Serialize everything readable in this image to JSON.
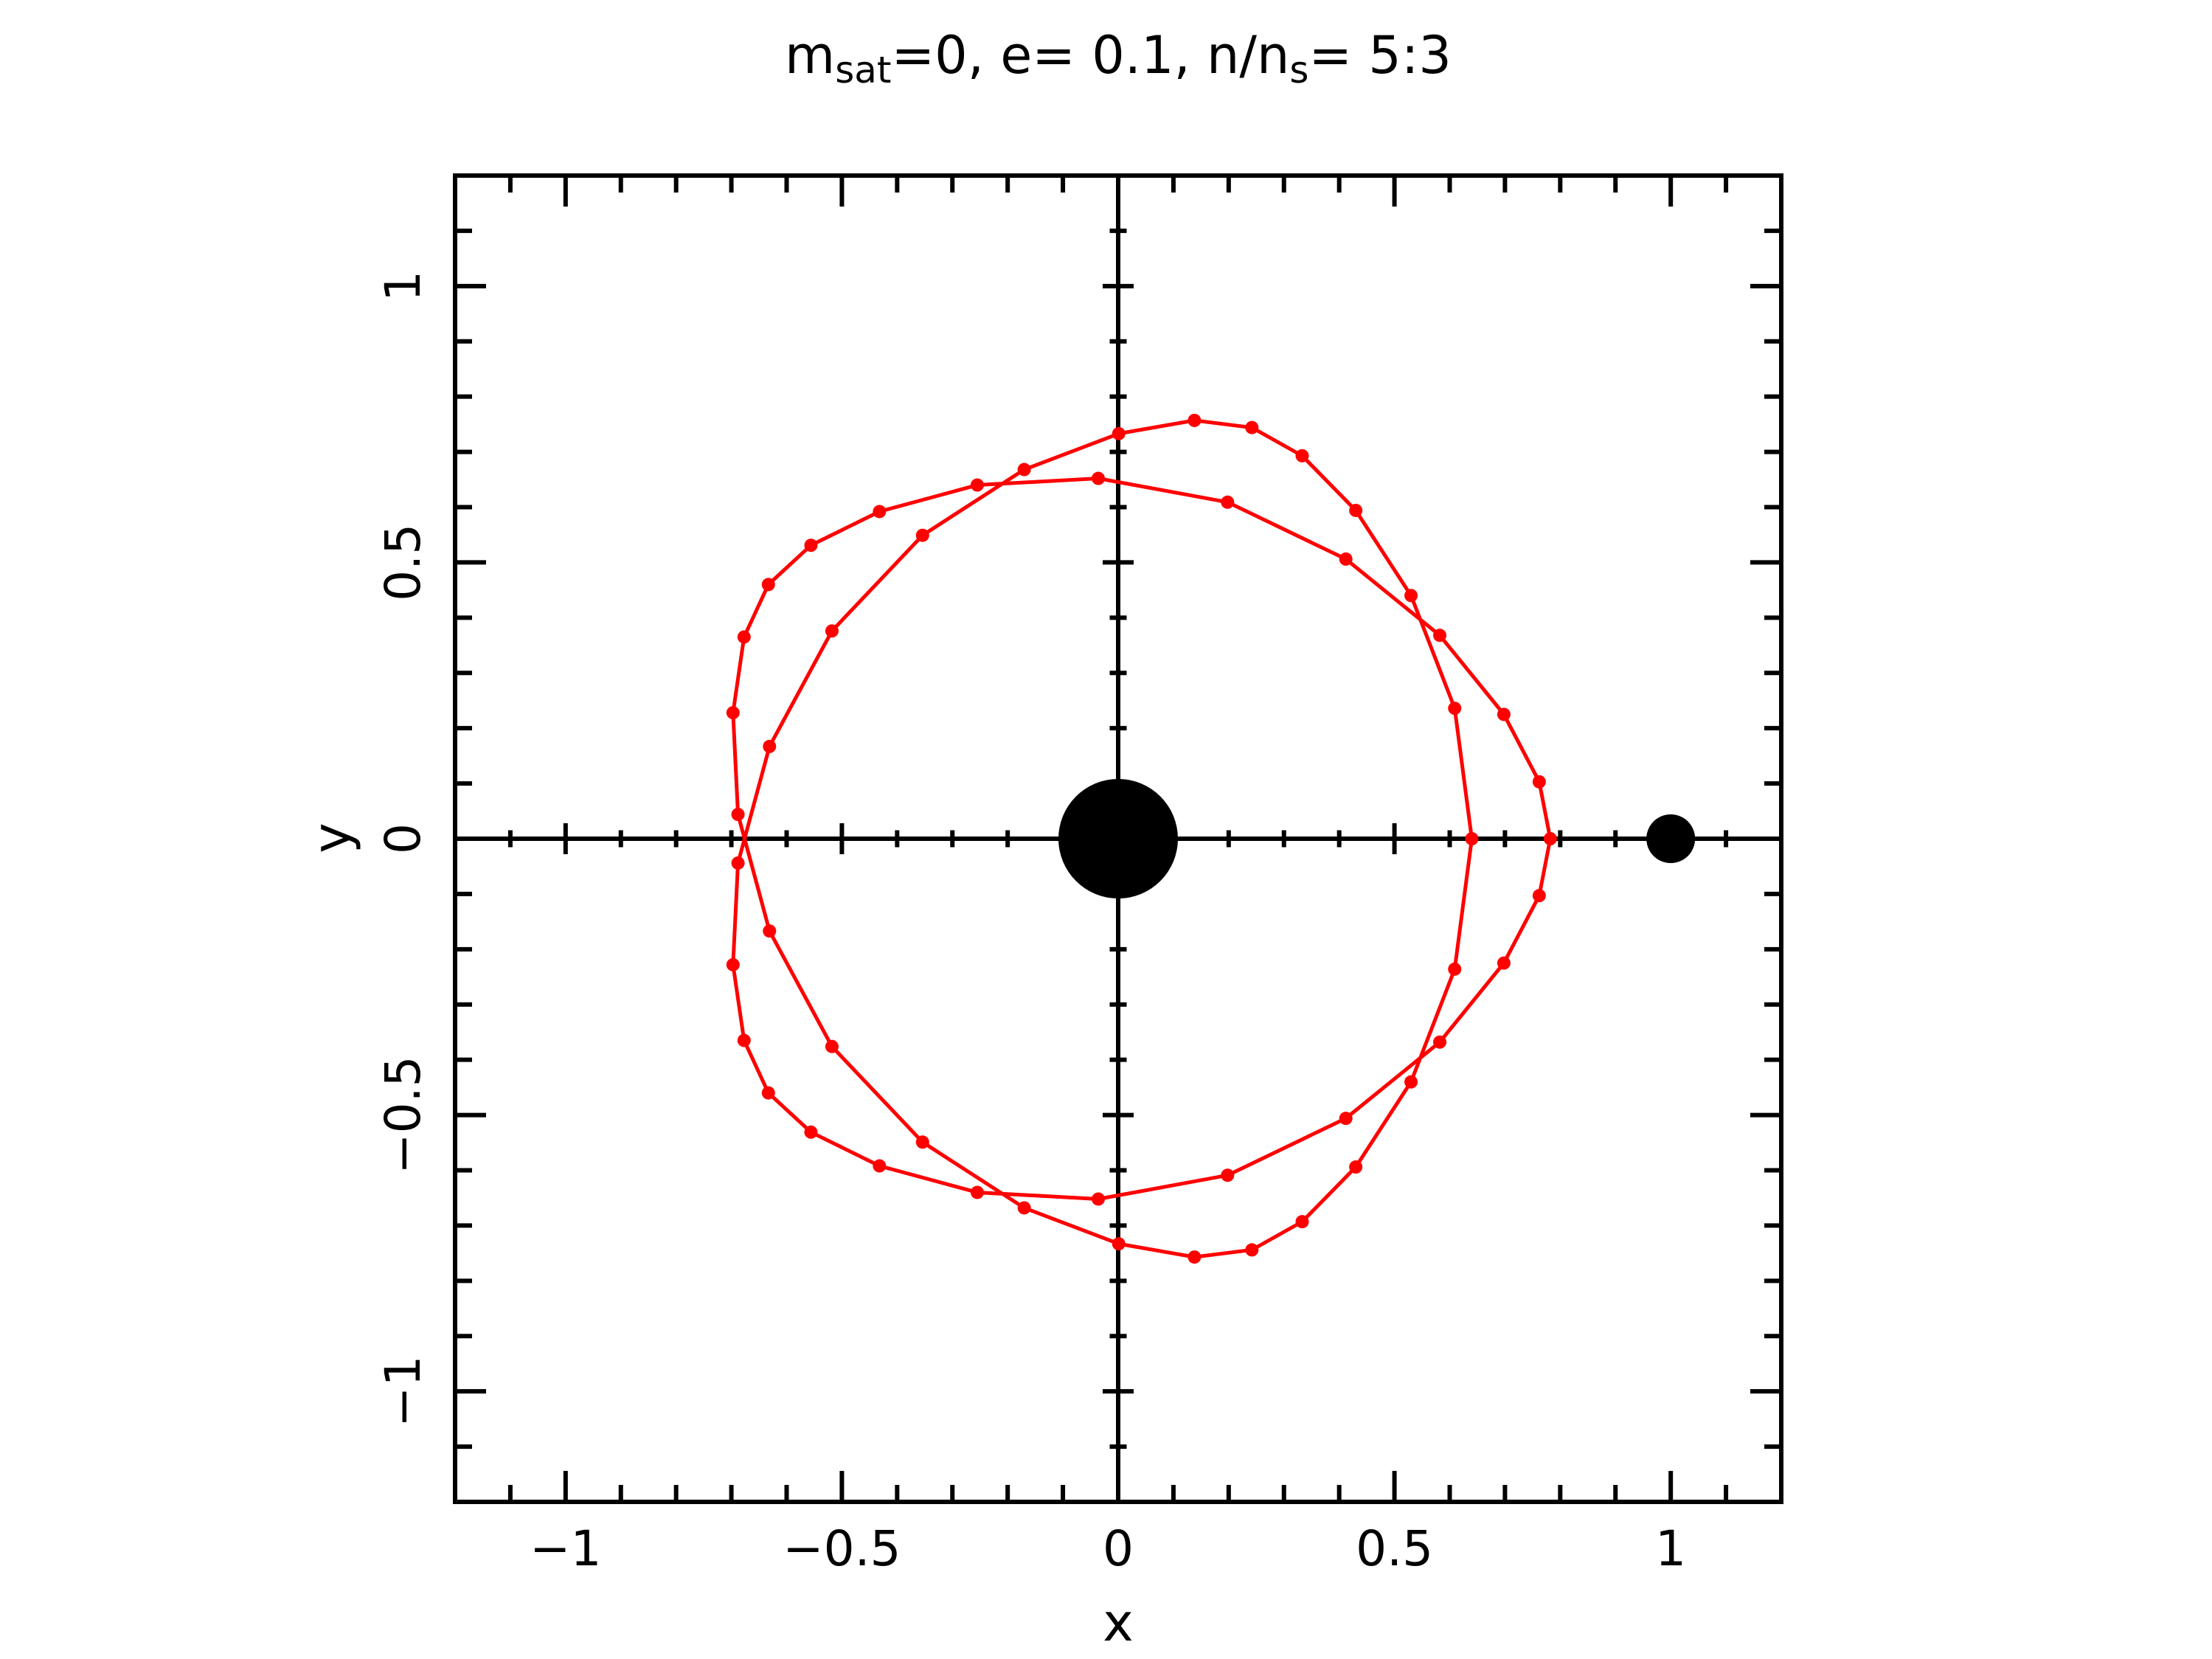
{
  "chart_data": {
    "type": "scatter",
    "title": [
      "m",
      "sat",
      "=0, e= 0.1, n/n",
      "s",
      "= 5:3"
    ],
    "x_label": "x",
    "y_label": "y",
    "xlim": [
      -1.2,
      1.2
    ],
    "ylim": [
      -1.2,
      1.2
    ],
    "xticks": [
      {
        "value": -1,
        "label": "−1"
      },
      {
        "value": -0.5,
        "label": "−0.5"
      },
      0,
      0.5,
      1
    ],
    "yticks": [
      {
        "value": -1,
        "label": "−1"
      },
      {
        "value": -0.5,
        "label": "−0.5"
      },
      0,
      0.5,
      1
    ],
    "xminor": [
      -1.1,
      -0.9,
      -0.8,
      -0.7,
      -0.6,
      -0.4,
      -0.3,
      -0.2,
      -0.1,
      0.1,
      0.2,
      0.3,
      0.4,
      0.6,
      0.7,
      0.8,
      0.9,
      1.1
    ],
    "yminor": [
      -1.1,
      -0.9,
      -0.8,
      -0.7,
      -0.6,
      -0.4,
      -0.3,
      -0.2,
      -0.1,
      0.1,
      0.2,
      0.3,
      0.4,
      0.6,
      0.7,
      0.8,
      0.9,
      1.1
    ],
    "series": [
      {
        "color": "#ff0000",
        "x": [
          0.64,
          0.609,
          0.53,
          0.43,
          0.333,
          0.242,
          0.138,
          0.001,
          -0.17,
          -0.354,
          -0.518,
          -0.631,
          -0.688,
          -0.697,
          -0.677,
          -0.633,
          -0.556,
          -0.432,
          -0.255,
          -0.036,
          0.198,
          0.412,
          0.582,
          0.698,
          0.762,
          0.782,
          0.762,
          0.698,
          0.582,
          0.412,
          0.198,
          -0.036,
          -0.255,
          -0.432,
          -0.556,
          -0.633,
          -0.677,
          -0.697,
          -0.688,
          -0.631,
          -0.518,
          -0.354,
          -0.17,
          0.001,
          0.138,
          0.242,
          0.333,
          0.43,
          0.53,
          0.609
        ],
        "values": [
          0,
          0.236,
          0.44,
          0.594,
          0.693,
          0.744,
          0.757,
          0.733,
          0.668,
          0.549,
          0.376,
          0.167,
          -0.044,
          -0.228,
          -0.365,
          -0.46,
          -0.531,
          -0.592,
          -0.64,
          -0.652,
          -0.609,
          -0.506,
          -0.368,
          -0.225,
          -0.103,
          0,
          0.103,
          0.225,
          0.368,
          0.506,
          0.609,
          0.652,
          0.64,
          0.592,
          0.531,
          0.46,
          0.365,
          0.228,
          0.044,
          -0.167,
          -0.376,
          -0.549,
          -0.668,
          -0.733,
          -0.757,
          -0.744,
          -0.693,
          -0.594,
          -0.44,
          -0.236
        ]
      },
      {
        "color": "#000000",
        "x": [
          0,
          1
        ],
        "values": [
          0,
          0
        ]
      }
    ],
    "origin_axes": true
  }
}
